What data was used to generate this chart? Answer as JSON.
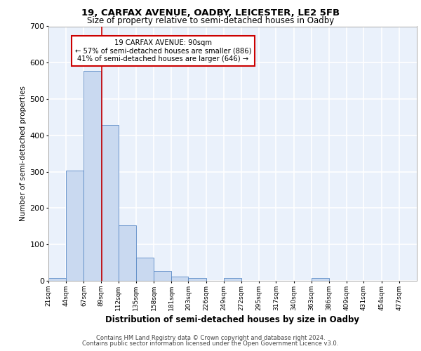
{
  "title_line1": "19, CARFAX AVENUE, OADBY, LEICESTER, LE2 5FB",
  "title_line2": "Size of property relative to semi-detached houses in Oadby",
  "xlabel": "Distribution of semi-detached houses by size in Oadby",
  "ylabel": "Number of semi-detached properties",
  "bin_labels": [
    "21sqm",
    "44sqm",
    "67sqm",
    "89sqm",
    "112sqm",
    "135sqm",
    "158sqm",
    "181sqm",
    "203sqm",
    "226sqm",
    "249sqm",
    "272sqm",
    "295sqm",
    "317sqm",
    "340sqm",
    "363sqm",
    "386sqm",
    "409sqm",
    "431sqm",
    "454sqm",
    "477sqm"
  ],
  "bar_values": [
    8,
    304,
    578,
    428,
    152,
    64,
    27,
    11,
    7,
    0,
    8,
    0,
    0,
    0,
    0,
    8,
    0,
    0,
    0,
    0,
    0
  ],
  "bin_edges": [
    21,
    44,
    67,
    89,
    112,
    135,
    158,
    181,
    203,
    226,
    249,
    272,
    295,
    317,
    340,
    363,
    386,
    409,
    431,
    454,
    477,
    500
  ],
  "bar_color": "#c9d9f0",
  "bar_edge_color": "#5a8ac6",
  "property_line_x": 90,
  "property_line_color": "#cc0000",
  "annotation_line1": "19 CARFAX AVENUE: 90sqm",
  "annotation_line2": "← 57% of semi-detached houses are smaller (886)",
  "annotation_line3": "41% of semi-detached houses are larger (646) →",
  "annotation_box_color": "#ffffff",
  "annotation_box_edge_color": "#cc0000",
  "ylim": [
    0,
    700
  ],
  "yticks": [
    0,
    100,
    200,
    300,
    400,
    500,
    600,
    700
  ],
  "background_color": "#eaf1fb",
  "grid_color": "#ffffff",
  "footer_line1": "Contains HM Land Registry data © Crown copyright and database right 2024.",
  "footer_line2": "Contains public sector information licensed under the Open Government Licence v3.0."
}
